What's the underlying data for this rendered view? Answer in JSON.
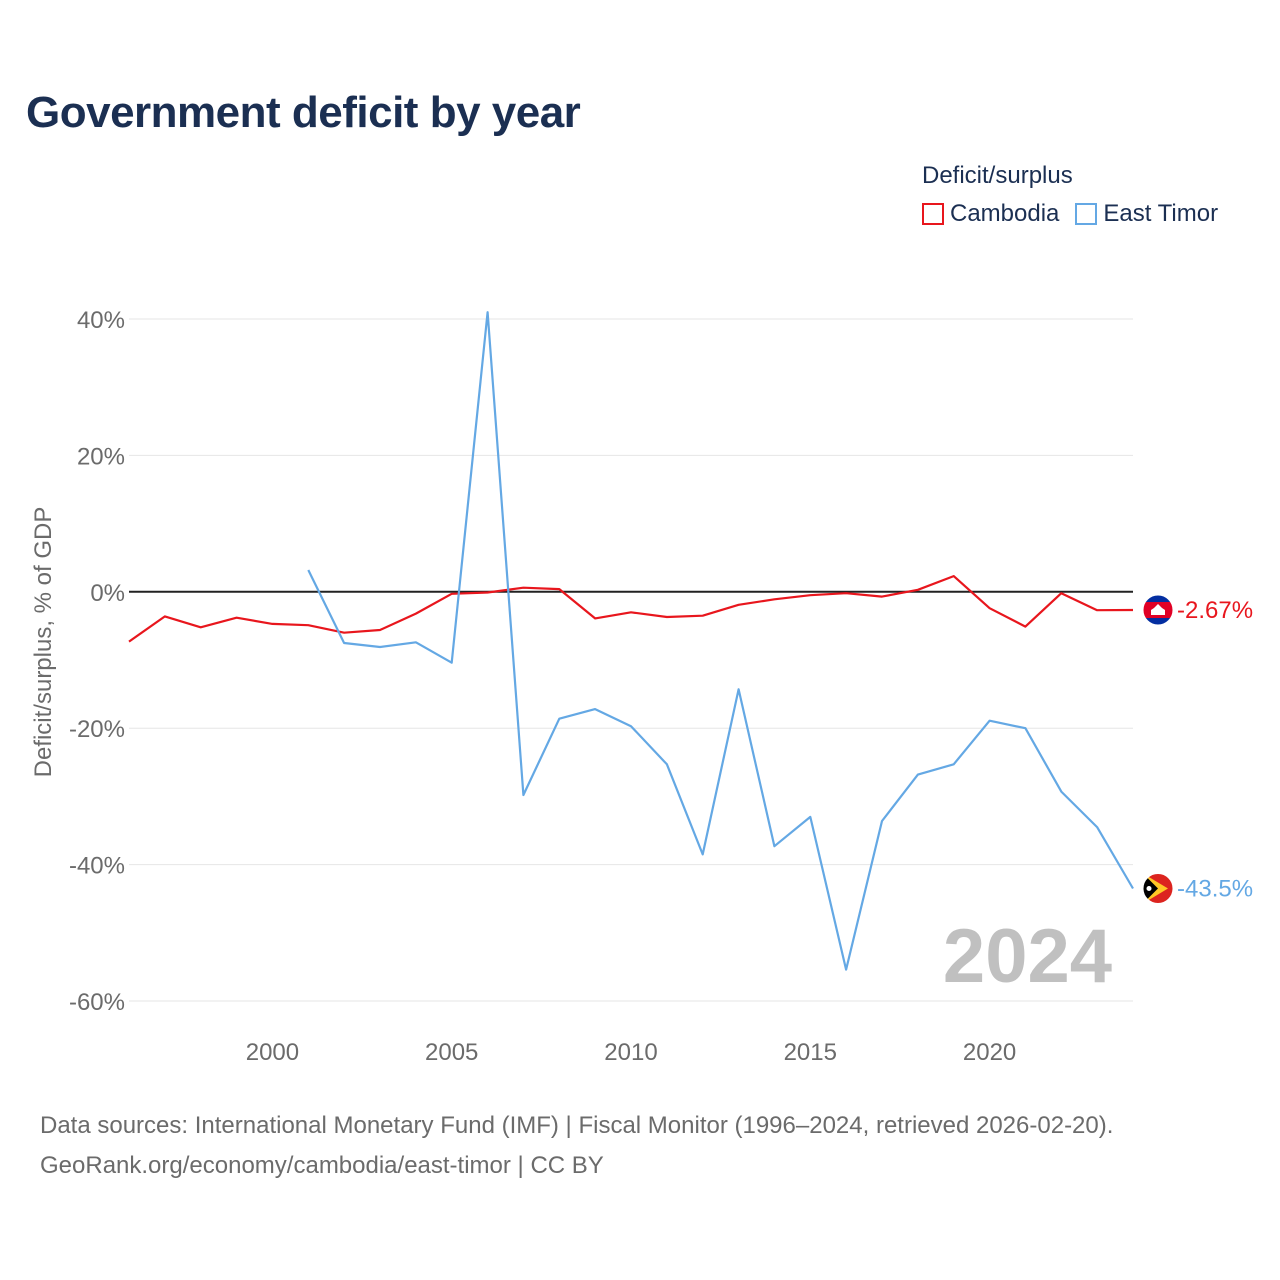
{
  "title": "Government deficit by year",
  "legend": {
    "title": "Deficit/surplus",
    "items": [
      {
        "label": "Cambodia",
        "color": "#e8161d"
      },
      {
        "label": "East Timor",
        "color": "#64a8e4"
      }
    ]
  },
  "chart_data": {
    "type": "line",
    "title": "Government deficit by year",
    "xlabel": "",
    "ylabel": "Deficit/surplus, % of GDP",
    "xlim": [
      1996,
      2024
    ],
    "ylim": [
      -60,
      40
    ],
    "yticks": [
      40,
      20,
      0,
      -20,
      -40,
      -60
    ],
    "ytick_labels": [
      "40%",
      "20%",
      "0%",
      "-20%",
      "-40%",
      "-60%"
    ],
    "xticks": [
      2000,
      2005,
      2010,
      2015,
      2020
    ],
    "xtick_labels": [
      "2000",
      "2005",
      "2010",
      "2015",
      "2020"
    ],
    "grid": true,
    "year_watermark": "2024",
    "series": [
      {
        "name": "Cambodia",
        "color": "#e8161d",
        "end_label": "-2.67%",
        "flag": "cambodia-flag",
        "x": [
          1996,
          1997,
          1998,
          1999,
          2000,
          2001,
          2002,
          2003,
          2004,
          2005,
          2006,
          2007,
          2008,
          2009,
          2010,
          2011,
          2012,
          2013,
          2014,
          2015,
          2016,
          2017,
          2018,
          2019,
          2020,
          2021,
          2022,
          2023,
          2024
        ],
        "values": [
          -7.3,
          -3.6,
          -5.2,
          -3.8,
          -4.7,
          -4.9,
          -6.0,
          -5.6,
          -3.2,
          -0.3,
          -0.1,
          0.6,
          0.4,
          -3.9,
          -3.0,
          -3.7,
          -3.5,
          -1.9,
          -1.1,
          -0.5,
          -0.2,
          -0.7,
          0.3,
          2.3,
          -2.4,
          -5.1,
          -0.2,
          -2.7,
          -2.67
        ]
      },
      {
        "name": "East Timor",
        "color": "#64a8e4",
        "end_label": "-43.5%",
        "flag": "east-timor-flag",
        "x": [
          2001,
          2002,
          2003,
          2004,
          2005,
          2006,
          2007,
          2008,
          2009,
          2010,
          2011,
          2012,
          2013,
          2014,
          2015,
          2016,
          2017,
          2018,
          2019,
          2020,
          2021,
          2022,
          2023,
          2024
        ],
        "values": [
          3.2,
          -7.5,
          -8.1,
          -7.4,
          -10.4,
          41.0,
          -29.8,
          -18.6,
          -17.2,
          -19.7,
          -25.3,
          -38.5,
          -14.3,
          -37.3,
          -33.0,
          -55.4,
          -33.6,
          -26.8,
          -25.3,
          -18.9,
          -20.0,
          -29.3,
          -34.5,
          -43.5
        ]
      }
    ]
  },
  "footer": {
    "line1": "Data sources: International Monetary Fund (IMF) | Fiscal Monitor (1996–2024, retrieved 2026-02-20).",
    "line2": "GeoRank.org/economy/cambodia/east-timor | CC BY"
  }
}
